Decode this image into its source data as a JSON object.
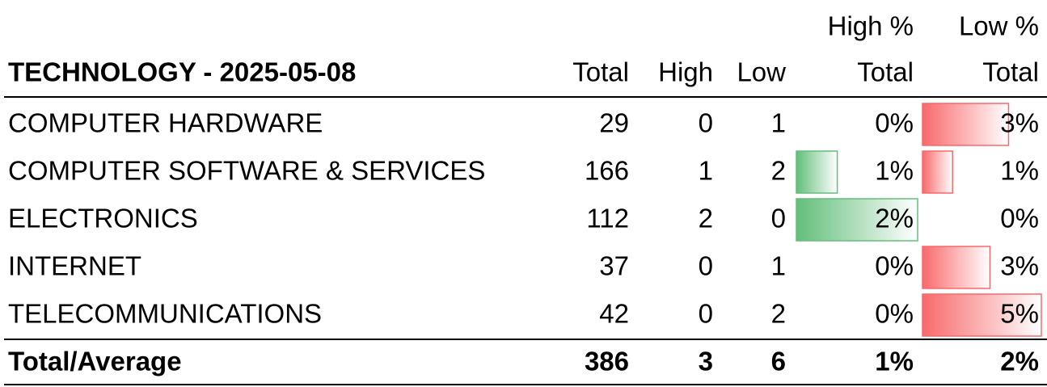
{
  "header": {
    "title": "TECHNOLOGY - 2025-05-08",
    "total": "Total",
    "high": "High",
    "low": "Low",
    "high_pct": [
      "High %",
      "Total"
    ],
    "low_pct": [
      "Low %",
      "Total"
    ]
  },
  "table": {
    "rows": [
      [
        "COMPUTER HARDWARE",
        29,
        0,
        1,
        "0%",
        "3%"
      ],
      [
        "COMPUTER SOFTWARE & SERVICES",
        166,
        1,
        2,
        "1%",
        "1%"
      ],
      [
        "ELECTRONICS",
        112,
        2,
        0,
        "2%",
        "0%"
      ],
      [
        "INTERNET",
        37,
        0,
        1,
        "0%",
        "3%"
      ],
      [
        "TELECOMMUNICATIONS",
        42,
        0,
        2,
        "0%",
        "5%"
      ]
    ],
    "footer": [
      "Total/Average",
      386,
      3,
      6,
      "1%",
      "2%"
    ]
  }
}
